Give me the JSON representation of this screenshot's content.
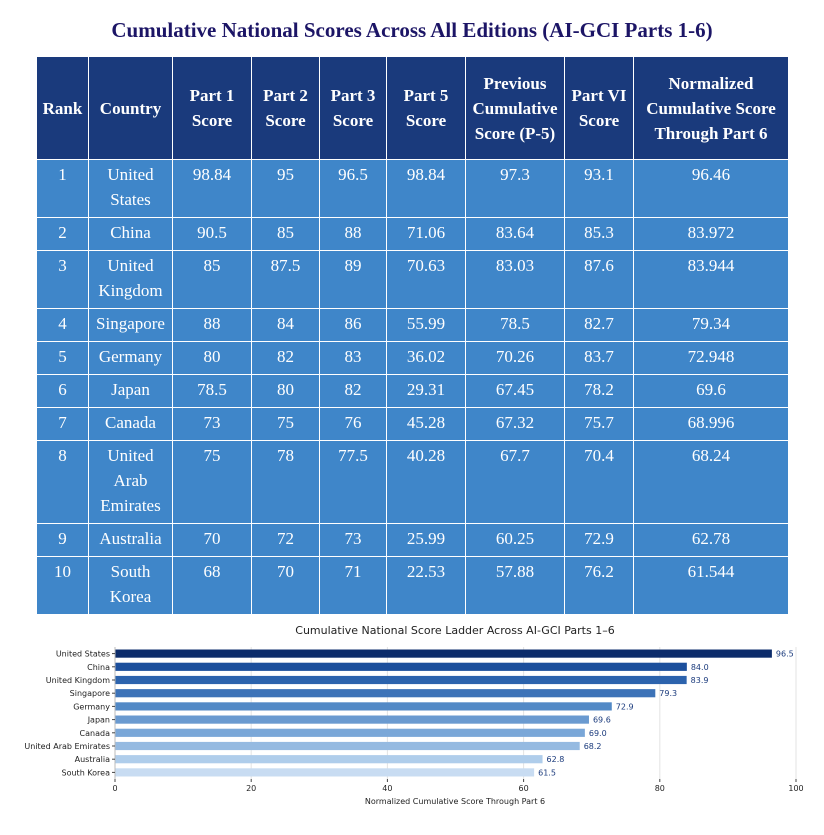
{
  "page_title": "Cumulative National Scores Across All Editions (AI-GCI Parts 1-6)",
  "table": {
    "headers": [
      "Rank",
      "Country",
      "Part 1 Score",
      "Part 2 Score",
      "Part 3 Score",
      "Part 5 Score",
      "Previous Cumulative Score (P-5)",
      "Part VI Score",
      "Normalized Cumulative Score Through Part 6"
    ],
    "rows": [
      [
        "1",
        "United States",
        "98.84",
        "95",
        "96.5",
        "98.84",
        "97.3",
        "93.1",
        "96.46"
      ],
      [
        "2",
        "China",
        "90.5",
        "85",
        "88",
        "71.06",
        "83.64",
        "85.3",
        "83.972"
      ],
      [
        "3",
        "United Kingdom",
        "85",
        "87.5",
        "89",
        "70.63",
        "83.03",
        "87.6",
        "83.944"
      ],
      [
        "4",
        "Singapore",
        "88",
        "84",
        "86",
        "55.99",
        "78.5",
        "82.7",
        "79.34"
      ],
      [
        "5",
        "Germany",
        "80",
        "82",
        "83",
        "36.02",
        "70.26",
        "83.7",
        "72.948"
      ],
      [
        "6",
        "Japan",
        "78.5",
        "80",
        "82",
        "29.31",
        "67.45",
        "78.2",
        "69.6"
      ],
      [
        "7",
        "Canada",
        "73",
        "75",
        "76",
        "45.28",
        "67.32",
        "75.7",
        "68.996"
      ],
      [
        "8",
        "United Arab Emirates",
        "75",
        "78",
        "77.5",
        "40.28",
        "67.7",
        "70.4",
        "68.24"
      ],
      [
        "9",
        "Australia",
        "70",
        "72",
        "73",
        "25.99",
        "60.25",
        "72.9",
        "62.78"
      ],
      [
        "10",
        "South Korea",
        "68",
        "70",
        "71",
        "22.53",
        "57.88",
        "76.2",
        "61.544"
      ]
    ]
  },
  "chart_data": {
    "type": "bar",
    "orientation": "horizontal",
    "title": "Cumulative National Score Ladder Across AI-GCI Parts 1–6",
    "xlabel": "Normalized Cumulative Score Through Part 6",
    "ylabel": "",
    "xlim": [
      0,
      100
    ],
    "xticks": [
      "0",
      "20",
      "40",
      "60",
      "80",
      "100"
    ],
    "grid": true,
    "categories": [
      "United States",
      "China",
      "United Kingdom",
      "Singapore",
      "Germany",
      "Japan",
      "Canada",
      "United Arab Emirates",
      "Australia",
      "South Korea"
    ],
    "values": [
      96.46,
      83.972,
      83.944,
      79.34,
      72.948,
      69.6,
      68.996,
      68.24,
      62.78,
      61.544
    ],
    "value_labels": [
      "96.5",
      "84.0",
      "83.9",
      "79.3",
      "72.9",
      "69.6",
      "69.0",
      "68.2",
      "62.8",
      "61.5"
    ],
    "colors": [
      "#0c2c6b",
      "#1c4f9c",
      "#2c63ad",
      "#3d73b8",
      "#5289c6",
      "#6a9ad0",
      "#7aa7d8",
      "#95bae1",
      "#afcdeb",
      "#c8dcf2"
    ]
  }
}
